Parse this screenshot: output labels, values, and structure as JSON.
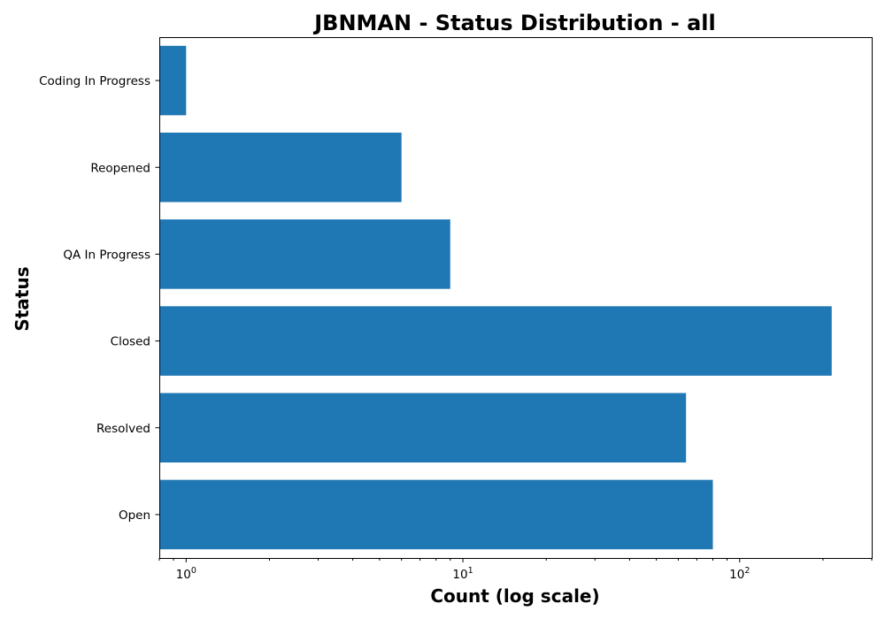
{
  "chart_data": {
    "type": "bar",
    "orientation": "horizontal",
    "title": "JBNMAN - Status Distribution - all",
    "xlabel": "Count (log scale)",
    "ylabel": "Status",
    "x_scale": "log",
    "xlim": [
      0.8,
      300
    ],
    "x_ticks": [
      {
        "value": 1,
        "base": "10",
        "exp": "0"
      },
      {
        "value": 10,
        "base": "10",
        "exp": "1"
      },
      {
        "value": 100,
        "base": "10",
        "exp": "2"
      }
    ],
    "categories": [
      "Open",
      "Resolved",
      "Closed",
      "QA In Progress",
      "Reopened",
      "Coding In Progress"
    ],
    "values": [
      80,
      64,
      215,
      9,
      6,
      1
    ],
    "color": "#1f77b4",
    "grid": false,
    "legend": "none"
  }
}
